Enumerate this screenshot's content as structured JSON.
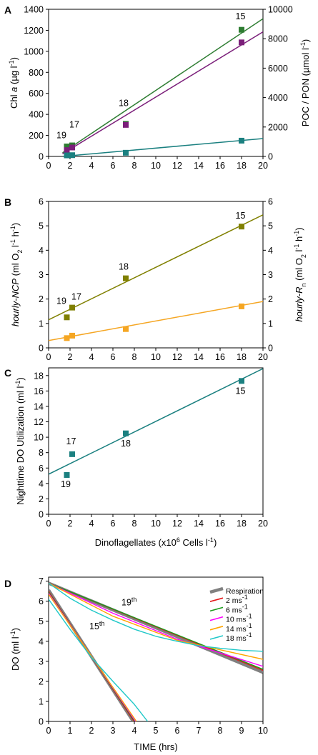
{
  "chart_data": [
    {
      "panel": "A",
      "type": "scatter",
      "xlim": [
        0,
        20
      ],
      "ylim": [
        0,
        1400
      ],
      "y2lim": [
        0,
        10000
      ],
      "x_ticks": [
        "0",
        "2",
        "4",
        "6",
        "8",
        "10",
        "12",
        "14",
        "16",
        "18",
        "20"
      ],
      "y_ticks": [
        "0",
        "200",
        "400",
        "600",
        "800",
        "1000",
        "1200",
        "1400"
      ],
      "y2_ticks": [
        "0",
        "2000",
        "4000",
        "6000",
        "8000",
        "10000"
      ],
      "ylabel_parts": [
        "Chl ",
        "a",
        " (µg l",
        "-1",
        ")"
      ],
      "y2label_parts": [
        "POC / PON (µmol l",
        "-1",
        ")"
      ],
      "series": [
        {
          "color": "#2e7d32",
          "axis": "left",
          "x": [
            1.7,
            2.2,
            7.2,
            18.0
          ],
          "y": [
            95,
            105,
            310,
            1205
          ],
          "fit": [
            [
              1.3,
              35
            ],
            [
              20,
              1310
            ]
          ]
        },
        {
          "color": "#7b1f7a",
          "axis": "left",
          "x": [
            1.7,
            2.2,
            7.2,
            18.0
          ],
          "y": [
            60,
            85,
            300,
            1085
          ],
          "fit": [
            [
              1.3,
              25
            ],
            [
              20,
              1185
            ]
          ]
        },
        {
          "color": "#1b8080",
          "axis": "left",
          "x": [
            1.7,
            2.2,
            7.2,
            18.0
          ],
          "y": [
            10,
            12,
            35,
            150
          ],
          "fit": [
            [
              1.3,
              0
            ],
            [
              20,
              170
            ]
          ]
        }
      ],
      "point_labels": [
        {
          "text": "19",
          "x": 1.2,
          "y": 175
        },
        {
          "text": "17",
          "x": 2.4,
          "y": 275
        },
        {
          "text": "18",
          "x": 7.0,
          "y": 480
        },
        {
          "text": "15",
          "x": 17.9,
          "y": 1305
        }
      ]
    },
    {
      "panel": "B",
      "type": "scatter",
      "xlim": [
        0,
        20
      ],
      "ylim": [
        0,
        6
      ],
      "y2lim": [
        0,
        6
      ],
      "x_ticks": [
        "0",
        "2",
        "4",
        "6",
        "8",
        "10",
        "12",
        "14",
        "16",
        "18",
        "20"
      ],
      "y_ticks": [
        "0",
        "1",
        "2",
        "3",
        "4",
        "5",
        "6"
      ],
      "y2_ticks": [
        "0",
        "1",
        "2",
        "3",
        "4",
        "5",
        "6"
      ],
      "ylabel_parts": [
        "hourly-NCP",
        " (ml O",
        "2",
        " l",
        "-1",
        " h",
        "-1",
        ")"
      ],
      "y2label_parts": [
        "hourly-R",
        "n",
        " (ml O",
        "2",
        " l",
        "-1",
        " h",
        "-1",
        ")"
      ],
      "series": [
        {
          "color": "#808000",
          "axis": "left",
          "x": [
            1.7,
            2.2,
            7.2,
            18.0
          ],
          "y": [
            1.25,
            1.65,
            2.85,
            4.97
          ],
          "fit": [
            [
              0,
              1.15
            ],
            [
              20,
              5.45
            ]
          ]
        },
        {
          "color": "#f5a623",
          "axis": "right",
          "x": [
            1.7,
            2.2,
            7.2,
            18.0
          ],
          "y": [
            0.4,
            0.5,
            0.77,
            1.7
          ],
          "fit": [
            [
              0,
              0.3
            ],
            [
              20,
              1.9
            ]
          ]
        }
      ],
      "point_labels": [
        {
          "text": "19",
          "x": 1.2,
          "y": 1.8
        },
        {
          "text": "17",
          "x": 2.6,
          "y": 1.98
        },
        {
          "text": "18",
          "x": 7.0,
          "y": 3.2
        },
        {
          "text": "15",
          "x": 17.9,
          "y": 5.3
        }
      ]
    },
    {
      "panel": "C",
      "type": "scatter",
      "xlim": [
        0,
        20
      ],
      "ylim": [
        0,
        19
      ],
      "x_ticks": [
        "0",
        "2",
        "4",
        "6",
        "8",
        "10",
        "12",
        "14",
        "16",
        "18",
        "20"
      ],
      "y_ticks": [
        "0",
        "2",
        "4",
        "6",
        "8",
        "10",
        "12",
        "14",
        "16",
        "18"
      ],
      "ylabel_parts": [
        "Nighttime DO Utilization (ml l",
        "-1",
        ")"
      ],
      "xlabel_parts": [
        "Dinoflagellates (x10",
        "6",
        " Cells l",
        "-1",
        ")"
      ],
      "series": [
        {
          "color": "#1b8080",
          "axis": "left",
          "x": [
            1.7,
            2.2,
            7.2,
            18.0
          ],
          "y": [
            5.1,
            7.8,
            10.5,
            17.3
          ],
          "fit": [
            [
              0,
              5.2
            ],
            [
              20,
              18.9
            ]
          ]
        }
      ],
      "point_labels": [
        {
          "text": "17",
          "x": 2.1,
          "y": 9.1
        },
        {
          "text": "19",
          "x": 1.6,
          "y": 3.5
        },
        {
          "text": "18",
          "x": 7.2,
          "y": 8.8
        },
        {
          "text": "15",
          "x": 17.9,
          "y": 15.6
        }
      ]
    },
    {
      "panel": "D",
      "type": "line",
      "xlim": [
        0,
        10
      ],
      "ylim": [
        0,
        7.2
      ],
      "x_ticks": [
        "0",
        "1",
        "2",
        "3",
        "4",
        "5",
        "6",
        "7",
        "8",
        "9",
        "10"
      ],
      "y_ticks": [
        "0",
        "1",
        "2",
        "3",
        "4",
        "5",
        "6",
        "7"
      ],
      "ylabel_parts": [
        "DO (ml l",
        "-1",
        ")"
      ],
      "xlabel_parts": [
        "TIME (hrs)"
      ],
      "legend": [
        {
          "label_parts": [
            "Respiration"
          ],
          "color": "#808080"
        },
        {
          "label_parts": [
            "2 ms",
            "-1"
          ],
          "color": "#e41a1c"
        },
        {
          "label_parts": [
            "6 ms",
            "-1"
          ],
          "color": "#1a9a1a"
        },
        {
          "label_parts": [
            "10 ms",
            "-1"
          ],
          "color": "#ff00ff"
        },
        {
          "label_parts": [
            "14 ms",
            "-1"
          ],
          "color": "#ffa500"
        },
        {
          "label_parts": [
            "18 ms",
            "-1"
          ],
          "color": "#20c8c8"
        }
      ],
      "series": [
        {
          "group": "19th",
          "name": "Respiration",
          "color": "#808080",
          "x": [
            0,
            10
          ],
          "y": [
            6.9,
            2.45
          ]
        },
        {
          "group": "19th",
          "name": "2 ms-1",
          "color": "#e41a1c",
          "x": [
            0,
            10
          ],
          "y": [
            6.9,
            2.55
          ]
        },
        {
          "group": "19th",
          "name": "6 ms-1",
          "color": "#1a9a1a",
          "x": [
            0,
            10
          ],
          "y": [
            6.9,
            2.6
          ]
        },
        {
          "group": "19th",
          "name": "10 ms-1",
          "color": "#ff00ff",
          "x": [
            0,
            3,
            6,
            10
          ],
          "y": [
            6.9,
            5.4,
            4.1,
            2.75
          ]
        },
        {
          "group": "19th",
          "name": "14 ms-1",
          "color": "#ffa500",
          "x": [
            0,
            3,
            6,
            10
          ],
          "y": [
            6.9,
            5.25,
            4.05,
            3.1
          ]
        },
        {
          "group": "19th",
          "name": "18 ms-1",
          "color": "#20c8c8",
          "x": [
            0,
            1,
            2,
            3,
            4,
            5,
            6,
            7,
            8,
            9,
            10
          ],
          "y": [
            6.9,
            6.15,
            5.55,
            5.05,
            4.6,
            4.25,
            4.0,
            3.78,
            3.65,
            3.55,
            3.5
          ]
        },
        {
          "group": "15th",
          "name": "Respiration",
          "color": "#808080",
          "x": [
            0,
            3.95
          ],
          "y": [
            6.55,
            0
          ]
        },
        {
          "group": "15th",
          "name": "2 ms-1",
          "color": "#e41a1c",
          "x": [
            0,
            3.98
          ],
          "y": [
            6.5,
            0
          ]
        },
        {
          "group": "15th",
          "name": "6 ms-1",
          "color": "#1a9a1a",
          "x": [
            0,
            4.02
          ],
          "y": [
            6.45,
            0
          ]
        },
        {
          "group": "15th",
          "name": "10 ms-1",
          "color": "#ff00ff",
          "x": [
            0,
            4.06
          ],
          "y": [
            6.4,
            0
          ]
        },
        {
          "group": "15th",
          "name": "14 ms-1",
          "color": "#ffa500",
          "x": [
            0,
            4.1
          ],
          "y": [
            6.35,
            0
          ]
        },
        {
          "group": "15th",
          "name": "18 ms-1",
          "color": "#20c8c8",
          "x": [
            0,
            1,
            2,
            3,
            4,
            4.62
          ],
          "y": [
            6.1,
            4.6,
            3.2,
            2.0,
            0.85,
            0
          ]
        }
      ],
      "annotations": [
        {
          "base": "19",
          "sup": "th",
          "x": 3.4,
          "y": 5.8
        },
        {
          "base": "15",
          "sup": "th",
          "x": 1.9,
          "y": 4.6
        }
      ]
    }
  ]
}
